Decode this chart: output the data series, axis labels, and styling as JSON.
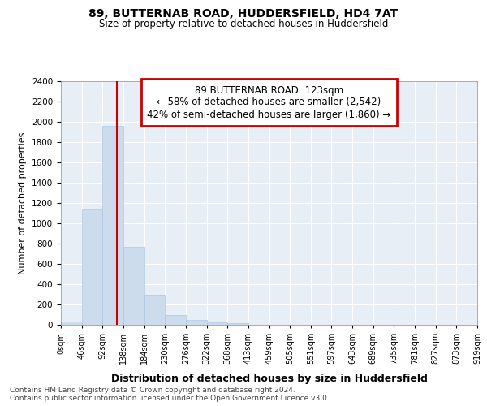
{
  "title": "89, BUTTERNAB ROAD, HUDDERSFIELD, HD4 7AT",
  "subtitle": "Size of property relative to detached houses in Huddersfield",
  "xlabel": "Distribution of detached houses by size in Huddersfield",
  "ylabel": "Number of detached properties",
  "property_size": 123,
  "property_label": "89 BUTTERNAB ROAD: 123sqm",
  "annotation_line1": "← 58% of detached houses are smaller (2,542)",
  "annotation_line2": "42% of semi-detached houses are larger (1,860) →",
  "bar_color": "#ccdcec",
  "bar_edge_color": "#aec8de",
  "vline_color": "#cc0000",
  "annotation_box_color": "#cc0000",
  "background_color": "#ffffff",
  "plot_bg_color": "#e8eef6",
  "grid_color": "#ffffff",
  "footer_text": "Contains HM Land Registry data © Crown copyright and database right 2024.\nContains public sector information licensed under the Open Government Licence v3.0.",
  "bin_edges": [
    0,
    46,
    92,
    138,
    184,
    230,
    276,
    322,
    368,
    414,
    460,
    506,
    552,
    598,
    644,
    690,
    736,
    782,
    828,
    874,
    920
  ],
  "bin_labels": [
    "0sqm",
    "46sqm",
    "92sqm",
    "138sqm",
    "184sqm",
    "230sqm",
    "276sqm",
    "322sqm",
    "368sqm",
    "413sqm",
    "459sqm",
    "505sqm",
    "551sqm",
    "597sqm",
    "643sqm",
    "689sqm",
    "735sqm",
    "781sqm",
    "827sqm",
    "873sqm",
    "919sqm"
  ],
  "bar_heights": [
    30,
    1140,
    1960,
    770,
    295,
    100,
    45,
    25,
    20,
    0,
    0,
    0,
    0,
    0,
    0,
    0,
    0,
    0,
    0,
    0
  ],
  "ylim": [
    0,
    2400
  ],
  "yticks": [
    0,
    200,
    400,
    600,
    800,
    1000,
    1200,
    1400,
    1600,
    1800,
    2000,
    2200,
    2400
  ]
}
